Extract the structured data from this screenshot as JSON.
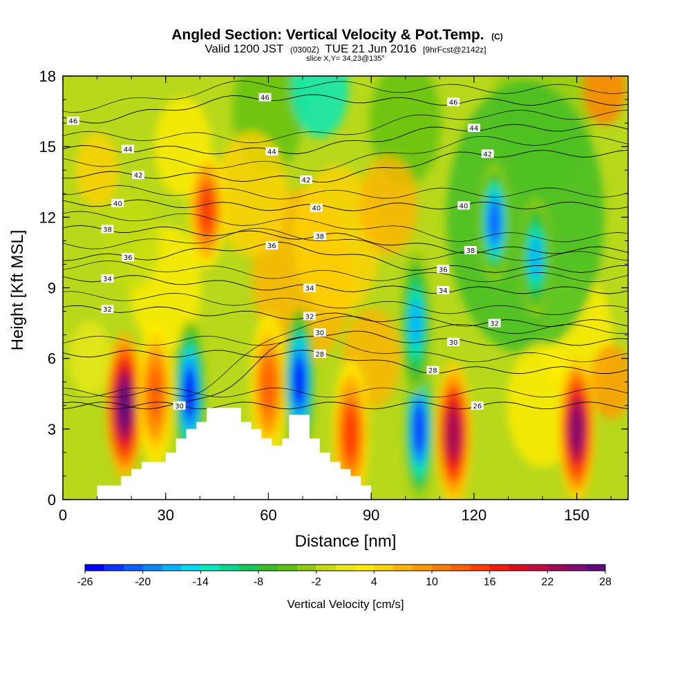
{
  "header": {
    "title_main": "Angled Section: Vertical Velocity & Pot.Temp.",
    "title_tag": "(C)",
    "valid_prefix": "Valid 1200 JST",
    "valid_utc": "(0300Z)",
    "valid_date": "TUE 21 Jun 2016",
    "forecast_tag": "[9hrFcst@2142z]",
    "slice": "slice X,Y= 34,23@135°"
  },
  "chart_data": {
    "type": "heatmap",
    "xlabel": "Distance [nm]",
    "ylabel": "Height [Kft MSL]",
    "xlim": [
      0,
      165
    ],
    "ylim": [
      0,
      18
    ],
    "xticks": [
      0,
      30,
      60,
      90,
      120,
      150
    ],
    "yticks": [
      0,
      3,
      6,
      9,
      12,
      15,
      18
    ],
    "colorbar": {
      "label": "Vertical Velocity [cm/s]",
      "min": -26,
      "max": 28,
      "step": 2,
      "ticks": [
        -26,
        -20,
        -14,
        -8,
        -2,
        4,
        10,
        16,
        22,
        28
      ],
      "colors": [
        "#0000ff",
        "#0a35ff",
        "#0f5cff",
        "#0a86ff",
        "#00b2ff",
        "#00d8f0",
        "#00e8c0",
        "#00d890",
        "#18c85a",
        "#3cbc28",
        "#5ec010",
        "#92cc10",
        "#c2dc10",
        "#e8e818",
        "#ffec00",
        "#ffd200",
        "#ffb400",
        "#ff9a00",
        "#ff7e00",
        "#ff6000",
        "#ff3c00",
        "#f01c10",
        "#d80c20",
        "#c00a40",
        "#a00a5a",
        "#800a70",
        "#600a80"
      ]
    },
    "vertical_velocity_features": [
      {
        "kind": "updraft",
        "x": 18,
        "z": 4.0,
        "peak": 28
      },
      {
        "kind": "updraft",
        "x": 27,
        "z": 4.5,
        "peak": 12
      },
      {
        "kind": "downdraft",
        "x": 37,
        "z": 4.5,
        "peak": -26
      },
      {
        "kind": "updraft",
        "x": 42,
        "z": 12.3,
        "peak": 14
      },
      {
        "kind": "updraft",
        "x": 60,
        "z": 4.8,
        "peak": 12
      },
      {
        "kind": "downdraft",
        "x": 69,
        "z": 5.0,
        "peak": -26
      },
      {
        "kind": "updraft",
        "x": 84,
        "z": 2.8,
        "peak": 14
      },
      {
        "kind": "downdraft",
        "x": 104,
        "z": 3.0,
        "peak": -24
      },
      {
        "kind": "downdraft",
        "x": 103,
        "z": 7.5,
        "peak": -18
      },
      {
        "kind": "downdraft",
        "x": 126,
        "z": 11.8,
        "peak": -22
      },
      {
        "kind": "downdraft",
        "x": 138,
        "z": 10.3,
        "peak": -18
      },
      {
        "kind": "updraft",
        "x": 114,
        "z": 2.8,
        "peak": 22
      },
      {
        "kind": "updraft",
        "x": 150,
        "z": 3.0,
        "peak": 24
      }
    ],
    "isentrope_levels": [
      46,
      44,
      42,
      40,
      38,
      36,
      34,
      32,
      30,
      28,
      26
    ],
    "isentrope_labels": [
      {
        "text": "46",
        "x": 3,
        "z": 16.1
      },
      {
        "text": "46",
        "x": 59,
        "z": 17.1
      },
      {
        "text": "46",
        "x": 114,
        "z": 16.9
      },
      {
        "text": "44",
        "x": 19,
        "z": 14.9
      },
      {
        "text": "44",
        "x": 61,
        "z": 14.8
      },
      {
        "text": "44",
        "x": 120,
        "z": 15.8
      },
      {
        "text": "42",
        "x": 22,
        "z": 13.8
      },
      {
        "text": "42",
        "x": 71,
        "z": 13.6
      },
      {
        "text": "42",
        "x": 124,
        "z": 14.7
      },
      {
        "text": "40",
        "x": 16,
        "z": 12.6
      },
      {
        "text": "40",
        "x": 74,
        "z": 12.4
      },
      {
        "text": "40",
        "x": 117,
        "z": 12.5
      },
      {
        "text": "38",
        "x": 13,
        "z": 11.5
      },
      {
        "text": "38",
        "x": 75,
        "z": 11.2
      },
      {
        "text": "38",
        "x": 119,
        "z": 10.6
      },
      {
        "text": "36",
        "x": 19,
        "z": 10.3
      },
      {
        "text": "36",
        "x": 61,
        "z": 10.8
      },
      {
        "text": "36",
        "x": 111,
        "z": 9.8
      },
      {
        "text": "34",
        "x": 13,
        "z": 9.4
      },
      {
        "text": "34",
        "x": 72,
        "z": 9.0
      },
      {
        "text": "34",
        "x": 111,
        "z": 8.9
      },
      {
        "text": "32",
        "x": 13,
        "z": 8.1
      },
      {
        "text": "32",
        "x": 72,
        "z": 7.8
      },
      {
        "text": "32",
        "x": 126,
        "z": 7.5
      },
      {
        "text": "30",
        "x": 75,
        "z": 7.1
      },
      {
        "text": "30",
        "x": 114,
        "z": 6.7
      },
      {
        "text": "30",
        "x": 34,
        "z": 4.0
      },
      {
        "text": "28",
        "x": 75,
        "z": 6.2
      },
      {
        "text": "28",
        "x": 108,
        "z": 5.5
      },
      {
        "text": "26",
        "x": 121,
        "z": 4.0
      }
    ],
    "terrain": [
      [
        0,
        0
      ],
      [
        10,
        0
      ],
      [
        10,
        0.6
      ],
      [
        17,
        0.6
      ],
      [
        17,
        1.0
      ],
      [
        20,
        1.0
      ],
      [
        20,
        1.3
      ],
      [
        23,
        1.3
      ],
      [
        23,
        1.6
      ],
      [
        30,
        1.6
      ],
      [
        30,
        2.0
      ],
      [
        33,
        2.0
      ],
      [
        33,
        2.6
      ],
      [
        36,
        2.6
      ],
      [
        36,
        3.0
      ],
      [
        39,
        3.0
      ],
      [
        39,
        3.3
      ],
      [
        42,
        3.3
      ],
      [
        42,
        3.9
      ],
      [
        52,
        3.9
      ],
      [
        52,
        3.3
      ],
      [
        55,
        3.3
      ],
      [
        55,
        3.0
      ],
      [
        58,
        3.0
      ],
      [
        58,
        2.6
      ],
      [
        61,
        2.6
      ],
      [
        61,
        2.3
      ],
      [
        64,
        2.3
      ],
      [
        64,
        2.6
      ],
      [
        66,
        2.6
      ],
      [
        66,
        3.6
      ],
      [
        72,
        3.6
      ],
      [
        72,
        2.6
      ],
      [
        75,
        2.6
      ],
      [
        75,
        2.0
      ],
      [
        78,
        2.0
      ],
      [
        78,
        1.6
      ],
      [
        81,
        1.6
      ],
      [
        81,
        1.3
      ],
      [
        84,
        1.3
      ],
      [
        84,
        1.0
      ],
      [
        87,
        1.0
      ],
      [
        87,
        0.6
      ],
      [
        90,
        0.6
      ],
      [
        90,
        0
      ],
      [
        165,
        0
      ]
    ]
  }
}
